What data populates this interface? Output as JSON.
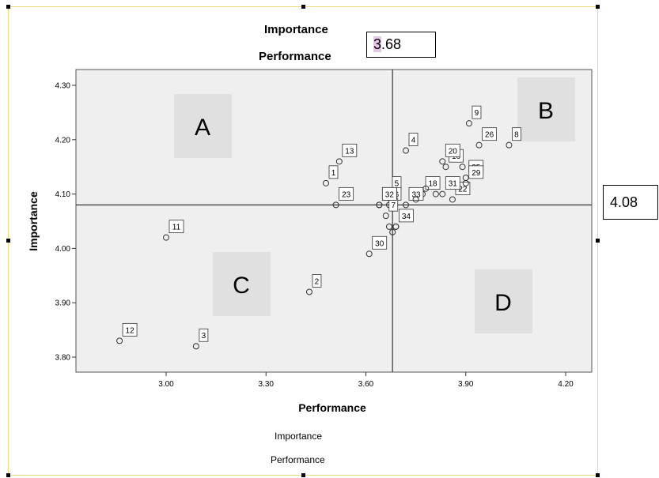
{
  "header": {
    "title_line1": "Importance",
    "title_line2": "Performance",
    "x_mean_label": "3.68",
    "x_mean_highlight": "3",
    "x_mean_rest": ".68"
  },
  "side_box": {
    "y_mean_label": "4.08"
  },
  "footer": {
    "line1": "Importance",
    "line2": "Performance"
  },
  "quadrant_labels": {
    "A": "A",
    "B": "B",
    "C": "C",
    "D": "D"
  },
  "colors": {
    "plot_bg": "#efefef",
    "quadrant_box": "#e0e0e0",
    "frame": "#f2d77c",
    "highlight": "#e6c6e6"
  },
  "chart_data": {
    "type": "scatter",
    "xlabel": "Performance",
    "ylabel": "Importance",
    "xlim": [
      2.75,
      4.26
    ],
    "ylim": [
      3.77,
      4.32
    ],
    "x_ticks": [
      "3.00",
      "3.30",
      "3.60",
      "3.90",
      "4.20"
    ],
    "y_ticks": [
      "4.30",
      "4.20",
      "4.10",
      "4.00",
      "3.90",
      "3.80"
    ],
    "x_ref_line": 3.68,
    "y_ref_line": 4.08,
    "grid": false,
    "points": [
      {
        "label": "1",
        "x": 3.48,
        "y": 4.12
      },
      {
        "label": "2",
        "x": 3.43,
        "y": 3.92
      },
      {
        "label": "3",
        "x": 3.09,
        "y": 3.82
      },
      {
        "label": "4",
        "x": 3.72,
        "y": 4.18
      },
      {
        "label": "5",
        "x": 3.67,
        "y": 4.1
      },
      {
        "label": "6",
        "x": 3.67,
        "y": 4.08
      },
      {
        "label": "7",
        "x": 3.66,
        "y": 4.06
      },
      {
        "label": "8",
        "x": 4.03,
        "y": 4.19
      },
      {
        "label": "9",
        "x": 3.91,
        "y": 4.23
      },
      {
        "label": "10",
        "x": 3.64,
        "y": 4.08
      },
      {
        "label": "11",
        "x": 3.0,
        "y": 4.02
      },
      {
        "label": "12",
        "x": 2.86,
        "y": 3.83
      },
      {
        "label": "13",
        "x": 3.52,
        "y": 4.16
      },
      {
        "label": "16",
        "x": 3.84,
        "y": 4.15
      },
      {
        "label": "18",
        "x": 3.77,
        "y": 4.1
      },
      {
        "label": "20",
        "x": 3.83,
        "y": 4.16
      },
      {
        "label": "22",
        "x": 3.86,
        "y": 4.09
      },
      {
        "label": "23",
        "x": 3.51,
        "y": 4.08
      },
      {
        "label": "25",
        "x": 3.9,
        "y": 4.13
      },
      {
        "label": "26",
        "x": 3.94,
        "y": 4.19
      },
      {
        "label": "29",
        "x": 3.9,
        "y": 4.12
      },
      {
        "label": "30",
        "x": 3.61,
        "y": 3.99
      },
      {
        "label": "31",
        "x": 3.83,
        "y": 4.1
      },
      {
        "label": "32",
        "x": 3.64,
        "y": 4.08
      },
      {
        "label": "33",
        "x": 3.72,
        "y": 4.08
      },
      {
        "label": "34",
        "x": 3.69,
        "y": 4.04
      },
      {
        "label": "",
        "x": 3.75,
        "y": 4.09
      },
      {
        "label": "",
        "x": 3.78,
        "y": 4.11
      },
      {
        "label": "",
        "x": 3.81,
        "y": 4.1
      },
      {
        "label": "",
        "x": 3.89,
        "y": 4.15
      },
      {
        "label": "",
        "x": 3.67,
        "y": 4.04
      },
      {
        "label": "",
        "x": 3.68,
        "y": 4.03
      },
      {
        "label": "",
        "x": 3.69,
        "y": 4.04
      }
    ]
  }
}
